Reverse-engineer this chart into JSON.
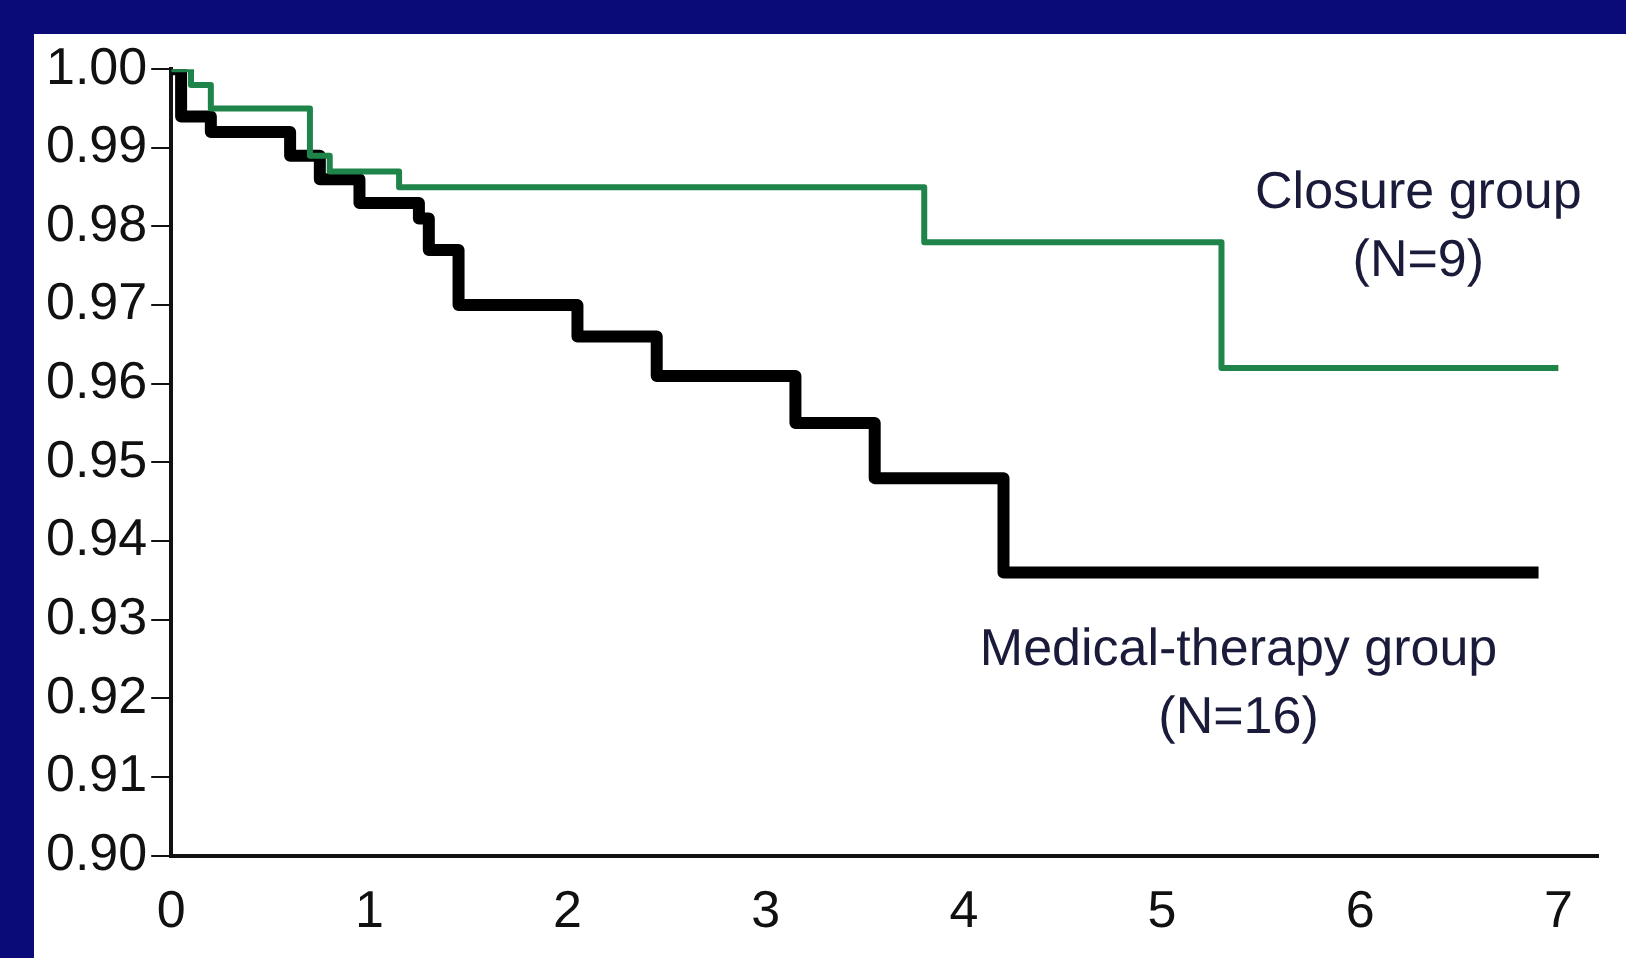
{
  "chart_data": {
    "type": "step",
    "xlim": [
      0,
      7.2
    ],
    "xticks": [
      0,
      1,
      2,
      3,
      4,
      5,
      6,
      7
    ],
    "ylim": [
      0.9,
      1.0
    ],
    "yticks": [
      {
        "value": 0.9,
        "label": "0.90"
      },
      {
        "value": 0.91,
        "label": "0.91"
      },
      {
        "value": 0.92,
        "label": "0.92"
      },
      {
        "value": 0.93,
        "label": "0.93"
      },
      {
        "value": 0.94,
        "label": "0.94"
      },
      {
        "value": 0.95,
        "label": "0.95"
      },
      {
        "value": 0.96,
        "label": "0.96"
      },
      {
        "value": 0.97,
        "label": "0.97"
      },
      {
        "value": 0.98,
        "label": "0.98"
      },
      {
        "value": 0.99,
        "label": "0.99"
      },
      {
        "value": 1.0,
        "label": "1.00"
      }
    ],
    "grid": false,
    "legend": false,
    "marker": "none",
    "line_style": "solid",
    "series": [
      {
        "name": "Closure group\n(N=9)",
        "color": "#1e8449",
        "x": [
          0,
          0.1,
          0.2,
          0.7,
          0.8,
          1.15,
          3.8,
          5.3,
          7.0
        ],
        "values": [
          1.0,
          0.998,
          0.995,
          0.989,
          0.987,
          0.985,
          0.978,
          0.962,
          0.962
        ]
      },
      {
        "name": "Medical-therapy group\n(N=16)",
        "color": "#000000",
        "x": [
          0,
          0.05,
          0.2,
          0.6,
          0.75,
          0.95,
          1.25,
          1.3,
          1.45,
          2.05,
          2.45,
          3.15,
          3.55,
          4.2,
          6.9
        ],
        "values": [
          1.0,
          0.994,
          0.992,
          0.989,
          0.986,
          0.983,
          0.981,
          0.977,
          0.97,
          0.966,
          0.961,
          0.955,
          0.948,
          0.936,
          0.936
        ]
      }
    ]
  }
}
